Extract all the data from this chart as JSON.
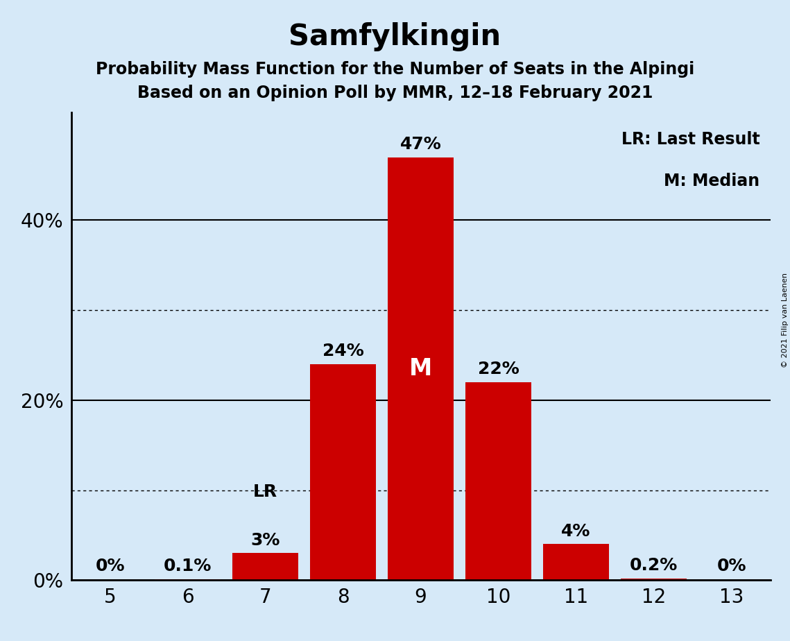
{
  "title": "Samfylkingin",
  "subtitle1": "Probability Mass Function for the Number of Seats in the Alpingi",
  "subtitle2": "Based on an Opinion Poll by MMR, 12–18 February 2021",
  "copyright": "© 2021 Filip van Laenen",
  "categories": [
    5,
    6,
    7,
    8,
    9,
    10,
    11,
    12,
    13
  ],
  "values": [
    0.0,
    0.1,
    3.0,
    24.0,
    47.0,
    22.0,
    4.0,
    0.2,
    0.0
  ],
  "labels": [
    "0%",
    "0.1%",
    "3%",
    "24%",
    "47%",
    "22%",
    "4%",
    "0.2%",
    "0%"
  ],
  "bar_color": "#cc0000",
  "background_color": "#d6e9f8",
  "last_result_seat": 7,
  "median_seat": 9,
  "legend_lr": "LR: Last Result",
  "legend_m": "M: Median",
  "ysolid": [
    20,
    40
  ],
  "ydotted": [
    10,
    30
  ],
  "ylim": [
    0,
    52
  ],
  "title_fontsize": 30,
  "subtitle_fontsize": 17,
  "label_fontsize": 18,
  "tick_fontsize": 20,
  "legend_fontsize": 17,
  "copyright_fontsize": 8
}
